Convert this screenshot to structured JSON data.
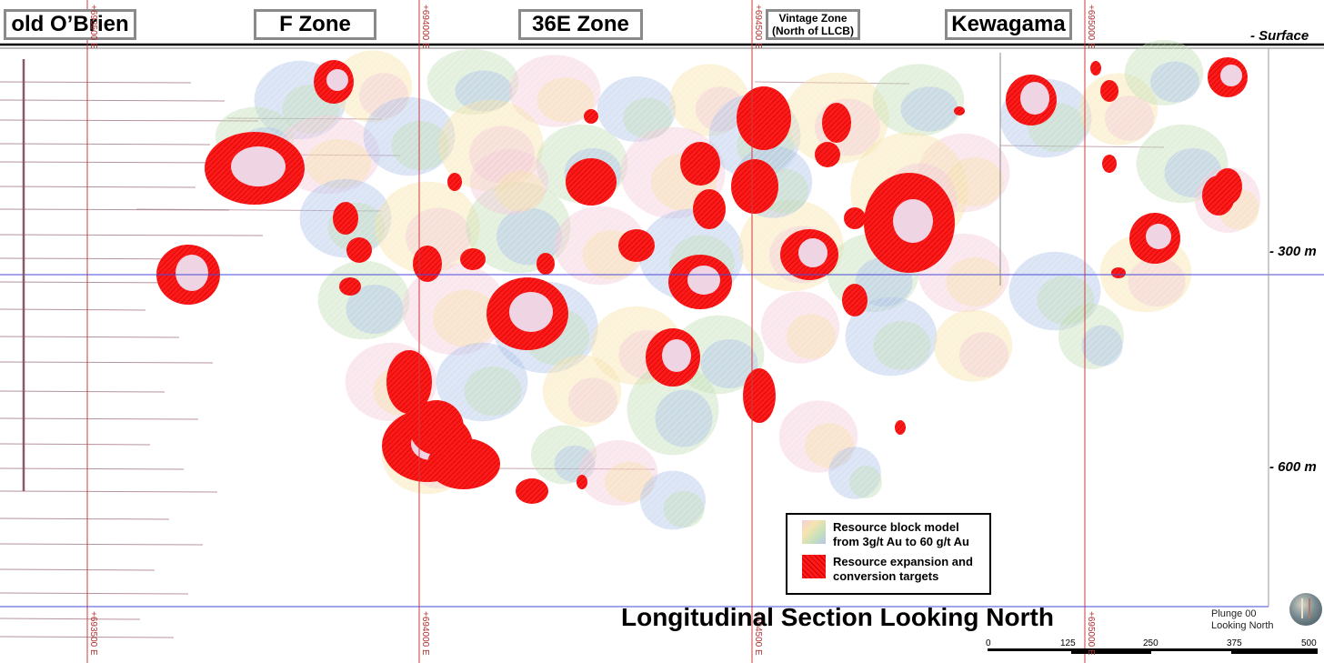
{
  "zones": {
    "old_obrien": "old O’Brien",
    "f_zone": "F Zone",
    "zone_36e": "36E Zone",
    "vintage_line1": "Vintage Zone",
    "vintage_line2": "(North of LLCB)",
    "kewagama": "Kewagama"
  },
  "depth_labels": {
    "surface": "- Surface",
    "d300": "- 300 m",
    "d600": "- 600 m"
  },
  "easting_labels": [
    "+693500 E",
    "+694000 E",
    "+694500 E",
    "+695000 E"
  ],
  "legend": {
    "block_model_line1": "Resource block model",
    "block_model_line2": "from 3g/t Au to 60 g/t Au",
    "targets_line1": "Resource expansion and",
    "targets_line2": "conversion targets"
  },
  "title": "Longitudinal Section Looking North",
  "view": {
    "plunge": "Plunge 00",
    "looking": "Looking North"
  },
  "scale_bar": {
    "ticks": [
      "0",
      "125",
      "250",
      "375",
      "500"
    ]
  },
  "colors": {
    "target_red": "#ff1a1a",
    "target_dark": "#c40000",
    "grid_red": "#d23a3a",
    "grid_blue": "#4a4ad8",
    "block_blue": "#9fb7e6",
    "block_yellow": "#f3dd9c",
    "block_green": "#b8d9a8",
    "block_pink": "#f1c2d3"
  }
}
